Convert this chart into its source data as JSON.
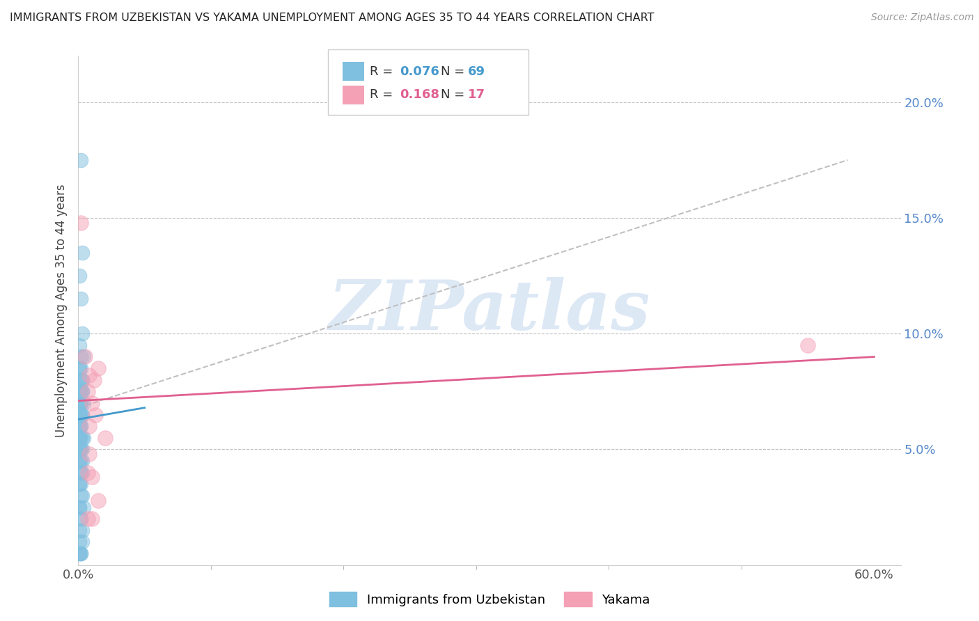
{
  "title": "IMMIGRANTS FROM UZBEKISTAN VS YAKAMA UNEMPLOYMENT AMONG AGES 35 TO 44 YEARS CORRELATION CHART",
  "source": "Source: ZipAtlas.com",
  "ylabel": "Unemployment Among Ages 35 to 44 years",
  "ylim": [
    0.0,
    0.22
  ],
  "xlim": [
    0.0,
    0.62
  ],
  "yticks": [
    0.05,
    0.1,
    0.15,
    0.2
  ],
  "ytick_labels": [
    "5.0%",
    "10.0%",
    "15.0%",
    "20.0%"
  ],
  "xtick_start_label": "0.0%",
  "xtick_end_label": "60.0%",
  "xtick_start_val": 0.0,
  "xtick_end_val": 0.6,
  "xtick_minor_vals": [
    0.1,
    0.2,
    0.3,
    0.4,
    0.5
  ],
  "legend_r1": "R = ",
  "legend_v1": "0.076",
  "legend_n1_label": "N = ",
  "legend_n1_val": "69",
  "legend_r2": "R = ",
  "legend_v2": "0.168",
  "legend_n2_label": "N = ",
  "legend_n2_val": "17",
  "color_blue": "#7fbfdf",
  "color_pink": "#f4a0b5",
  "color_blue_line": "#4499cc",
  "color_pink_line": "#e06090",
  "color_dashed": "#c0c0c0",
  "color_ytick": "#5588cc",
  "watermark_text": "ZIPatlas",
  "watermark_color": "#dde8f5",
  "legend_bottom_labels": [
    "Immigrants from Uzbekistan",
    "Yakama"
  ],
  "blue_scatter_x": [
    0.002,
    0.003,
    0.001,
    0.002,
    0.003,
    0.001,
    0.002,
    0.004,
    0.001,
    0.001,
    0.002,
    0.003,
    0.002,
    0.003,
    0.001,
    0.001,
    0.002,
    0.002,
    0.003,
    0.003,
    0.001,
    0.001,
    0.002,
    0.002,
    0.004,
    0.001,
    0.003,
    0.001,
    0.002,
    0.003,
    0.002,
    0.001,
    0.001,
    0.002,
    0.003,
    0.004,
    0.001,
    0.002,
    0.001,
    0.002,
    0.003,
    0.001,
    0.002,
    0.001,
    0.002,
    0.003,
    0.001,
    0.001,
    0.002,
    0.002,
    0.003,
    0.001,
    0.001,
    0.002,
    0.002,
    0.003,
    0.001,
    0.001,
    0.004,
    0.002,
    0.002,
    0.001,
    0.003,
    0.001,
    0.003,
    0.002,
    0.001,
    0.002,
    0.001
  ],
  "blue_scatter_y": [
    0.175,
    0.135,
    0.125,
    0.115,
    0.1,
    0.095,
    0.09,
    0.09,
    0.085,
    0.085,
    0.085,
    0.08,
    0.08,
    0.08,
    0.08,
    0.075,
    0.075,
    0.075,
    0.075,
    0.075,
    0.07,
    0.07,
    0.07,
    0.07,
    0.07,
    0.065,
    0.065,
    0.065,
    0.065,
    0.065,
    0.06,
    0.06,
    0.06,
    0.06,
    0.055,
    0.055,
    0.055,
    0.055,
    0.055,
    0.05,
    0.05,
    0.05,
    0.05,
    0.05,
    0.045,
    0.045,
    0.045,
    0.045,
    0.04,
    0.04,
    0.04,
    0.035,
    0.035,
    0.035,
    0.03,
    0.03,
    0.025,
    0.025,
    0.025,
    0.02,
    0.02,
    0.015,
    0.015,
    0.01,
    0.01,
    0.005,
    0.005,
    0.005,
    0.005
  ],
  "pink_scatter_x": [
    0.002,
    0.005,
    0.008,
    0.007,
    0.01,
    0.012,
    0.008,
    0.015,
    0.007,
    0.01,
    0.013,
    0.02,
    0.55,
    0.015,
    0.007,
    0.01,
    0.008
  ],
  "pink_scatter_y": [
    0.148,
    0.09,
    0.082,
    0.075,
    0.07,
    0.08,
    0.06,
    0.085,
    0.04,
    0.038,
    0.065,
    0.055,
    0.095,
    0.028,
    0.02,
    0.02,
    0.048
  ],
  "blue_line_x": [
    0.0,
    0.05
  ],
  "blue_line_y": [
    0.063,
    0.068
  ],
  "pink_line_x": [
    0.0,
    0.6
  ],
  "pink_line_y": [
    0.071,
    0.09
  ],
  "dashed_line_x": [
    0.0,
    0.58
  ],
  "dashed_line_y": [
    0.068,
    0.175
  ]
}
